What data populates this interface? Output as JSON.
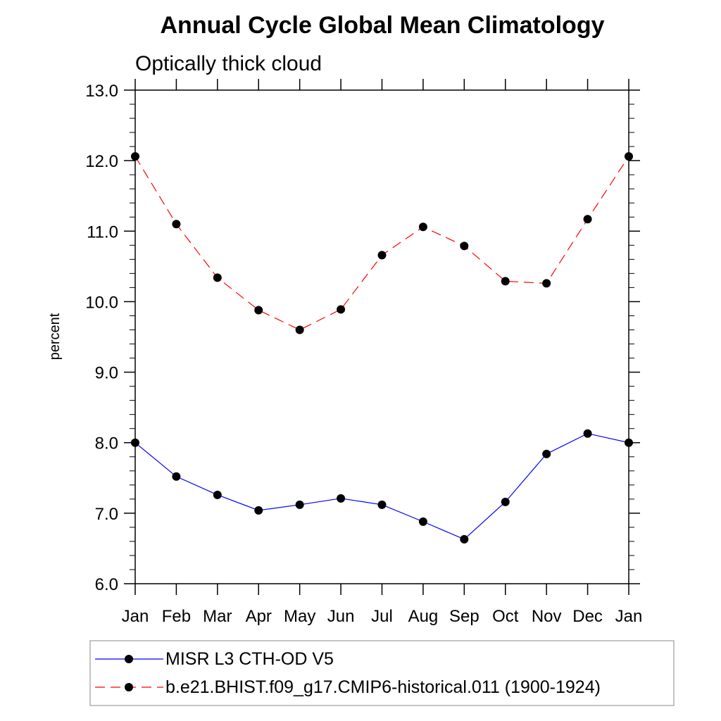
{
  "chart_data": {
    "type": "line",
    "title": "Annual Cycle Global Mean Climatology",
    "subtitle": "Optically thick cloud",
    "xlabel": "",
    "ylabel": "percent",
    "categories": [
      "Jan",
      "Feb",
      "Mar",
      "Apr",
      "May",
      "Jun",
      "Jul",
      "Aug",
      "Sep",
      "Oct",
      "Nov",
      "Dec",
      "Jan"
    ],
    "ylim": [
      6.0,
      13.0
    ],
    "yticks": [
      "6.0",
      "7.0",
      "8.0",
      "9.0",
      "10.0",
      "11.0",
      "12.0",
      "13.0"
    ],
    "grid": false,
    "legend_position": "bottom",
    "series": [
      {
        "name": "MISR L3 CTH-OD V5",
        "color": "#0000ff",
        "dash": "solid",
        "marker": "filled-circle",
        "values": [
          8.0,
          7.52,
          7.26,
          7.04,
          7.12,
          7.21,
          7.12,
          6.88,
          6.63,
          7.16,
          7.84,
          8.13,
          8.0
        ]
      },
      {
        "name": "b.e21.BHIST.f09_g17.CMIP6-historical.011 (1900-1924)",
        "color": "#ff0000",
        "dash": "dashed",
        "marker": "filled-circle",
        "values": [
          12.06,
          11.1,
          10.34,
          9.88,
          9.6,
          9.89,
          10.66,
          11.06,
          10.79,
          10.29,
          10.26,
          11.17,
          12.06
        ]
      }
    ]
  }
}
